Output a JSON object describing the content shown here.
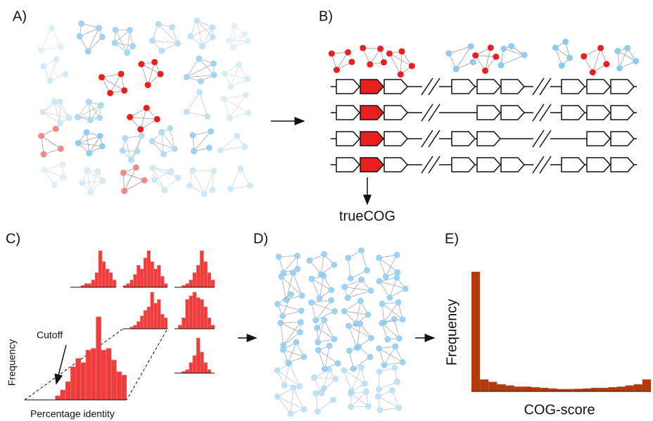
{
  "panels": {
    "a": {
      "label": "A)"
    },
    "b": {
      "label": "B)",
      "gene_label": "trueCOG"
    },
    "c": {
      "label": "C)",
      "annotation": "Cutoff",
      "y_axis": "Frequency",
      "x_axis": "Percentage identity"
    },
    "d": {
      "label": "D)"
    },
    "e": {
      "label": "E)",
      "y_axis": "Frequency",
      "x_axis": "COG-score"
    }
  }
}
